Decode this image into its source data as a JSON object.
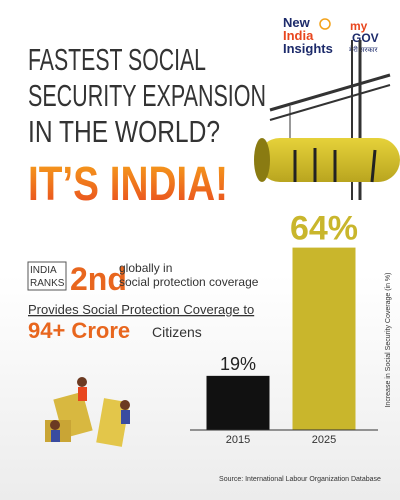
{
  "logos": {
    "new_india": [
      "New",
      "India",
      "Insights"
    ],
    "mygov": [
      "my",
      "GOV",
      "मेरी सरकार"
    ]
  },
  "title_lines": [
    "FASTEST SOCIAL",
    "SECURITY EXPANSION",
    "IN THE WORLD?"
  ],
  "headline": "IT’S INDIA!",
  "rank": {
    "box": [
      "INDIA",
      "RANKS"
    ],
    "rank": "2nd",
    "text": [
      "globally in",
      "social protection coverage"
    ]
  },
  "coverage": {
    "intro": "Provides Social Protection Coverage to",
    "amount": "94+ Crore",
    "suffix": "Citizens"
  },
  "chart_data": {
    "type": "bar",
    "categories": [
      "2015",
      "2025"
    ],
    "values": [
      19,
      64
    ],
    "value_labels": [
      "19%",
      "64%"
    ],
    "colors": [
      "#111111",
      "#c9b62c"
    ],
    "y_label": "Increase in Social Security Coverage (in %)"
  },
  "source": "Source: International Labour Organization Database"
}
